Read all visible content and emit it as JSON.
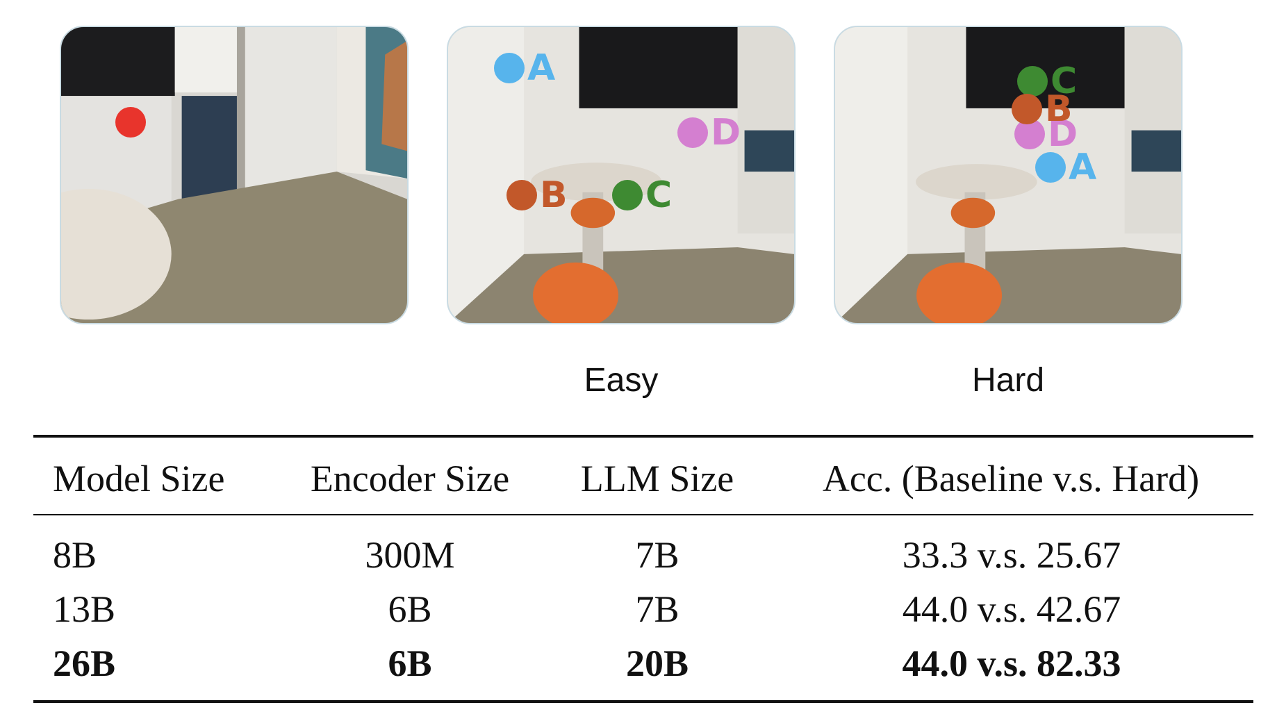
{
  "figure": {
    "panels": [
      {
        "id": "query",
        "caption": ""
      },
      {
        "id": "easy",
        "caption": "Easy"
      },
      {
        "id": "hard",
        "caption": "Hard"
      }
    ],
    "query_marker_color": "#e8342c",
    "option_colors": {
      "A": "#57b4ec",
      "B": "#c2582a",
      "C": "#3e8a32",
      "D": "#d47fd0"
    },
    "easy_markers": {
      "A": "A",
      "B": "B",
      "C": "C",
      "D": "D"
    },
    "hard_markers": {
      "A": "A",
      "B": "B",
      "C": "C",
      "D": "D"
    }
  },
  "table": {
    "headers": [
      "Model Size",
      "Encoder Size",
      "LLM Size",
      "Acc. (Baseline v.s. Hard)"
    ],
    "rows": [
      {
        "model": "8B",
        "encoder": "300M",
        "llm": "7B",
        "acc": "33.3 v.s. 25.67",
        "bold": false
      },
      {
        "model": "13B",
        "encoder": "6B",
        "llm": "7B",
        "acc": "44.0 v.s. 42.67",
        "bold": false
      },
      {
        "model": "26B",
        "encoder": "6B",
        "llm": "20B",
        "acc": "44.0 v.s. 82.33",
        "bold": true
      }
    ]
  }
}
